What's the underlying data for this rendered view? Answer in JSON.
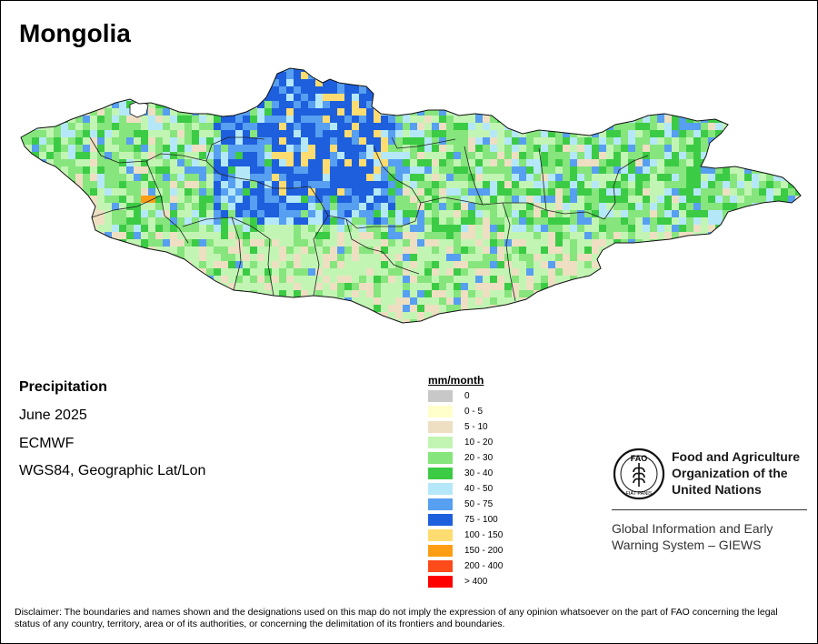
{
  "title": "Mongolia",
  "meta": {
    "variable": "Precipitation",
    "period": "June 2025",
    "model": "ECMWF",
    "projection": "WGS84, Geographic Lat/Lon"
  },
  "legend": {
    "title": "mm/month",
    "items": [
      {
        "label": "0",
        "color": "#c8c8c8"
      },
      {
        "label": "0 - 5",
        "color": "#ffffcc"
      },
      {
        "label": "5 - 10",
        "color": "#eedfc2"
      },
      {
        "label": "10 - 20",
        "color": "#c2f5b3"
      },
      {
        "label": "20 - 30",
        "color": "#86e57c"
      },
      {
        "label": "30 - 40",
        "color": "#3ccb45"
      },
      {
        "label": "40 - 50",
        "color": "#b4e8f9"
      },
      {
        "label": "50 - 75",
        "color": "#579ff0"
      },
      {
        "label": "75 - 100",
        "color": "#1e5fdd"
      },
      {
        "label": "100 - 150",
        "color": "#fedc70"
      },
      {
        "label": "150 - 200",
        "color": "#ff9e14"
      },
      {
        "label": "200 - 400",
        "color": "#ff4a1a"
      },
      {
        "label": "> 400",
        "color": "#ff0000"
      }
    ]
  },
  "logo": {
    "org_lines": [
      "Food and Agriculture",
      "Organization of the",
      "United Nations"
    ],
    "system_lines": [
      "Global Information and Early",
      "Warning System – GIEWS"
    ],
    "emblem_letters": "FAO",
    "emblem_motto": "FIAT PANIS"
  },
  "disclaimer": "Disclaimer: The boundaries and names shown and the designations used on this map do not imply the expression of any opinion whatsoever on the part of FAO concerning the legal status of any country, territory, area or of its authorities, or concerning the delimitation of its frontiers and boundaries."
}
